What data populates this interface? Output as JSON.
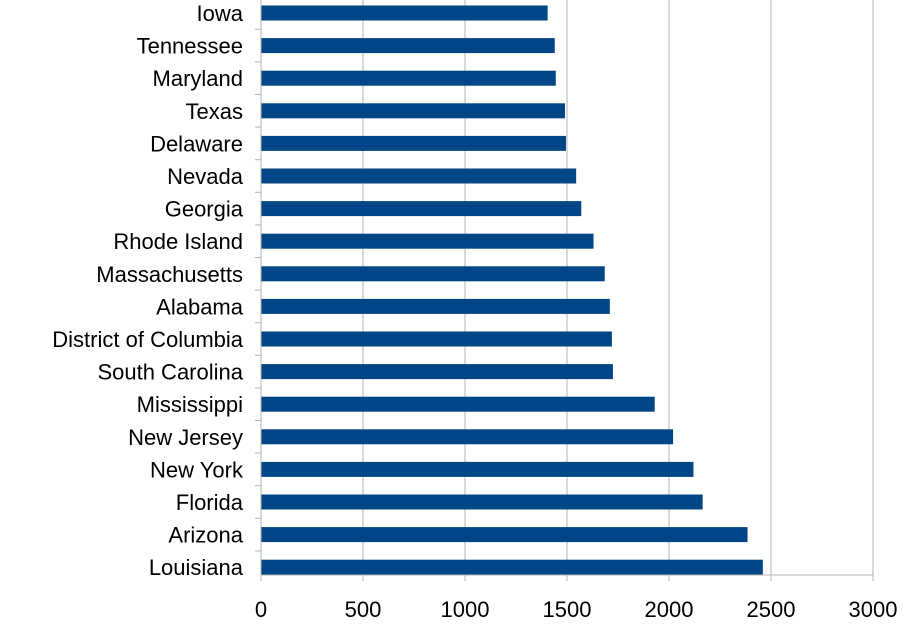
{
  "chart_data": {
    "type": "bar",
    "orientation": "horizontal",
    "title": "",
    "xlabel": "",
    "ylabel": "",
    "xlim": [
      0,
      3000
    ],
    "x_ticks": [
      "0",
      "500",
      "1000",
      "1500",
      "2000",
      "2500",
      "3000"
    ],
    "grid": "vertical",
    "legend": "none",
    "bar_color": "#004586",
    "categories": [
      "Iowa",
      "Tennessee",
      "Maryland",
      "Texas",
      "Delaware",
      "Nevada",
      "Georgia",
      "Rhode Island",
      "Massachusetts",
      "Alabama",
      "District of Columbia",
      "South Carolina",
      "Mississippi",
      "New Jersey",
      "New York",
      "Florida",
      "Arizona",
      "Louisiana"
    ],
    "values": [
      1405,
      1440,
      1445,
      1490,
      1495,
      1545,
      1570,
      1630,
      1685,
      1710,
      1720,
      1725,
      1930,
      2020,
      2120,
      2165,
      2385,
      2460
    ]
  }
}
